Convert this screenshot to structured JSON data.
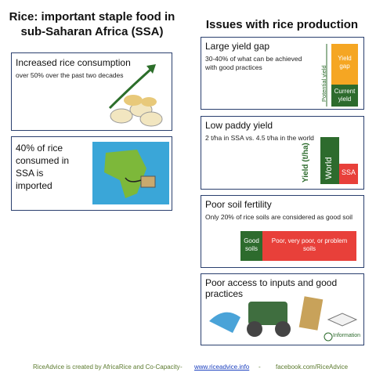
{
  "left": {
    "title": "Rice: important staple food in sub-Saharan Africa (SSA)",
    "cards": [
      {
        "title": "Increased rice consumption",
        "text": "over 50% over the past two decades"
      },
      {
        "text": "40% of rice consumed in SSA is imported"
      }
    ]
  },
  "right": {
    "title": "Issues with rice production",
    "cards": [
      {
        "title": "Large yield gap",
        "text": "30-40% of what can be achieved with good practices",
        "labels": [
          "Potential yield",
          "Yield gap",
          "Current yield"
        ]
      },
      {
        "title": "Low paddy yield",
        "text": "2 t/ha in SSA vs. 4.5 t/ha in the world",
        "labels": [
          "Yield (t/ha)",
          "World",
          "SSA"
        ]
      },
      {
        "title": "Poor soil fertility",
        "text": "Only 20% of rice soils are considered as good soil",
        "labels": [
          "Good soils",
          "Poor, very poor, or problem soils"
        ]
      },
      {
        "title": "Poor access to inputs and good practices",
        "labels": [
          "Information"
        ]
      }
    ]
  },
  "footer": [
    "RiceAdvice is created by AfricaRice and Co-Capacity",
    "-",
    "www.riceadvice.info",
    "-",
    "facebook.com/RiceAdvice"
  ]
}
